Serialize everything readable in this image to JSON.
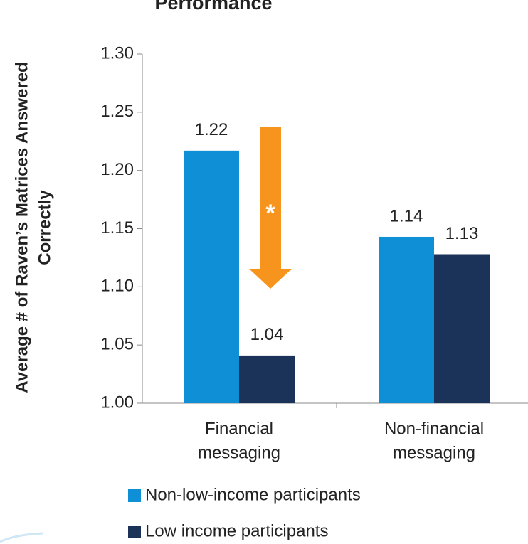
{
  "chart_data": {
    "type": "bar",
    "title": "Performance",
    "y_label": [
      "Average # of Raven’s Matrices Answered",
      "Correctly"
    ],
    "categories": [
      [
        "Financial",
        "messaging"
      ],
      [
        "Non-financial",
        "messaging"
      ]
    ],
    "series": [
      {
        "name": "Non-low-income participants",
        "color": "#0e8fd6",
        "values": [
          1.217,
          1.143
        ],
        "value_labels": [
          "1.22",
          "1.14"
        ]
      },
      {
        "name": "Low income participants",
        "color": "#1b3358",
        "values": [
          1.041,
          1.128
        ],
        "value_labels": [
          "1.04",
          "1.13"
        ]
      }
    ],
    "ylim": [
      1.0,
      1.3
    ],
    "yticks": [
      {
        "value": 1.0,
        "label": "1.00"
      },
      {
        "value": 1.05,
        "label": "1.05"
      },
      {
        "value": 1.1,
        "label": "1.10"
      },
      {
        "value": 1.15,
        "label": "1.15"
      },
      {
        "value": 1.2,
        "label": "1.20"
      },
      {
        "value": 1.25,
        "label": "1.25"
      },
      {
        "value": 1.3,
        "label": "1.30"
      }
    ],
    "annotation": {
      "text": "*",
      "color": "#f7941d"
    }
  }
}
